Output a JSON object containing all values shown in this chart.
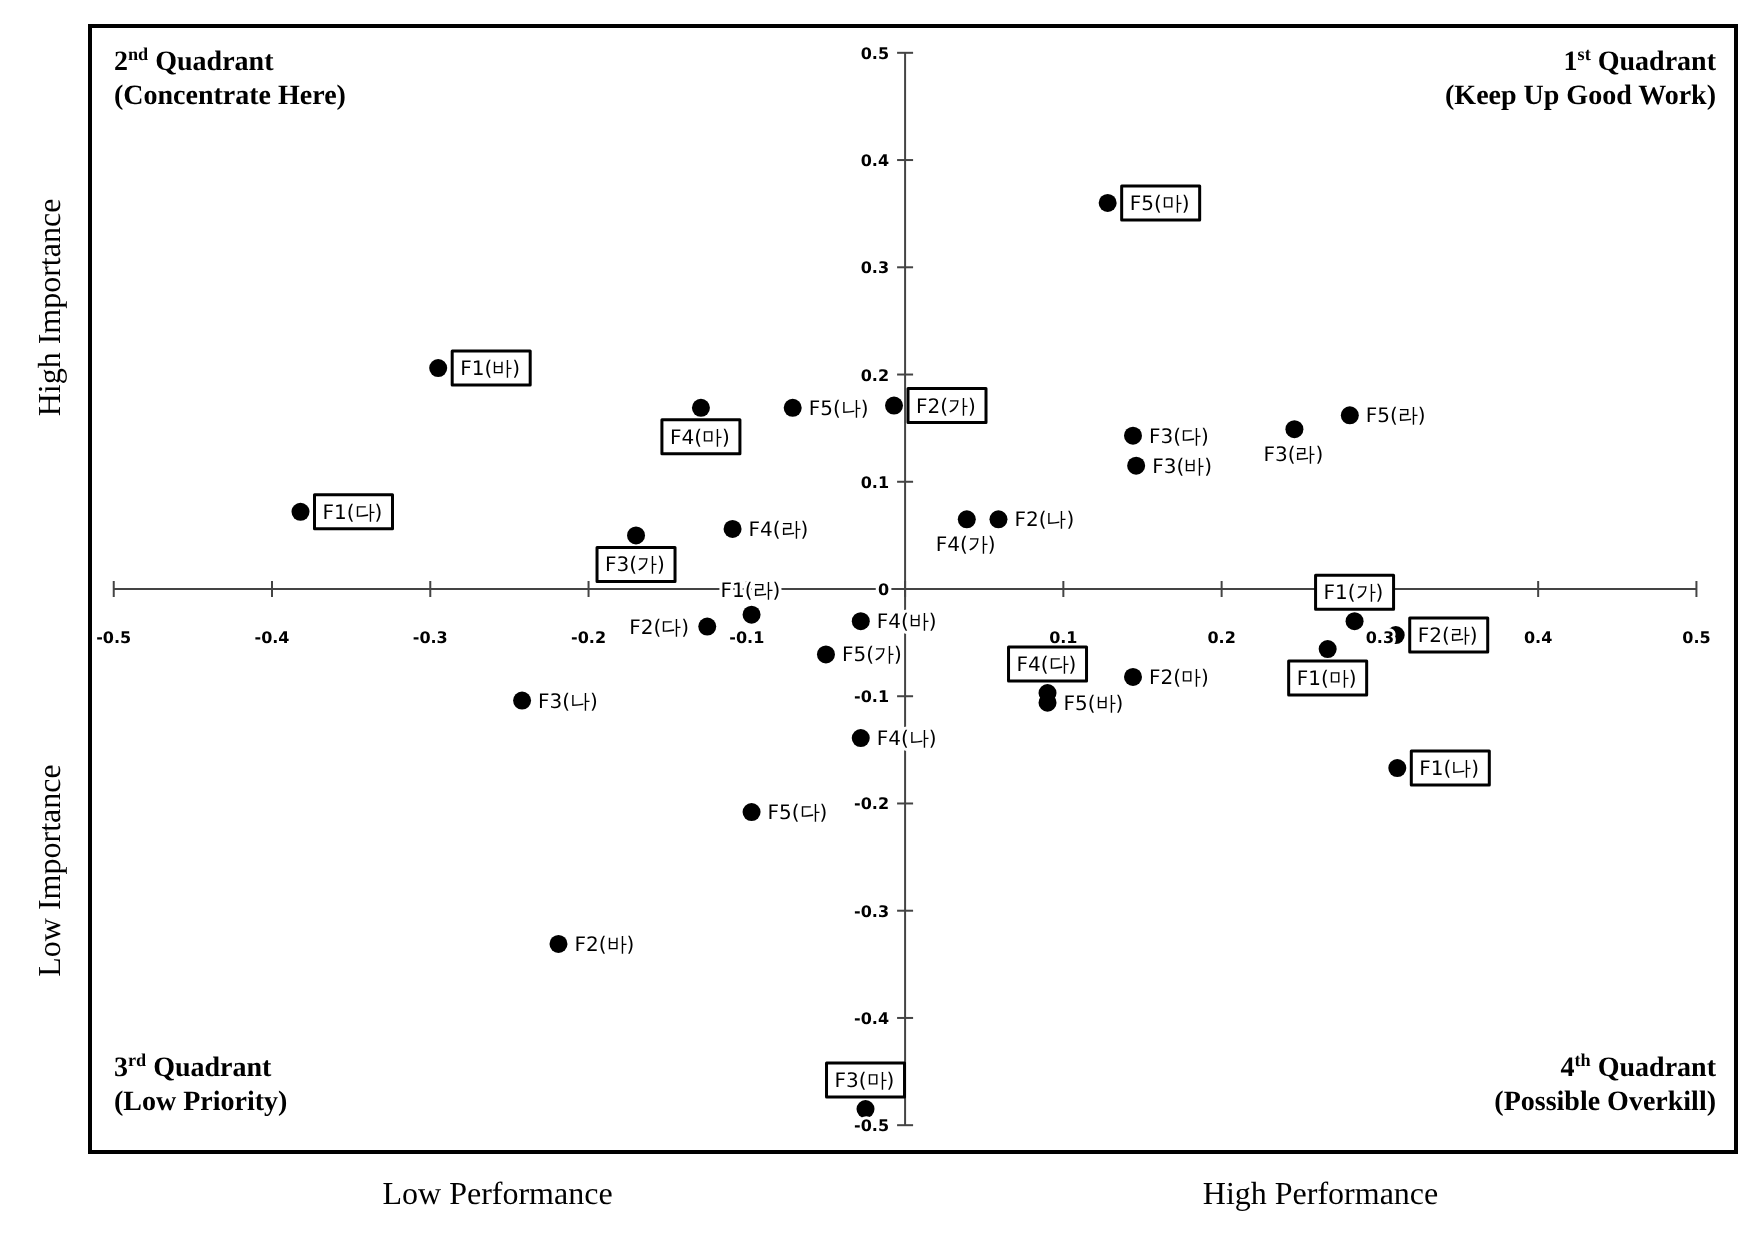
{
  "chart_data": {
    "type": "scatter",
    "xlim": [
      -0.515,
      0.525
    ],
    "ylim": [
      -0.525,
      0.525
    ],
    "xticks": [
      -0.5,
      -0.4,
      -0.3,
      -0.2,
      -0.1,
      {
        "value": 0,
        "label": null
      },
      0.1,
      0.2,
      0.3,
      0.4,
      0.5
    ],
    "yticks": [
      -0.5,
      -0.4,
      -0.3,
      -0.2,
      -0.1,
      0,
      0.1,
      0.2,
      0.3,
      0.4,
      0.5
    ],
    "grid": false,
    "marker": "circle",
    "series": [
      {
        "color": "#000000",
        "x": [
          0.128,
          -0.295,
          -0.382,
          -0.129,
          -0.007,
          -0.17,
          0.284,
          0.31,
          0.267,
          0.311,
          0.09,
          -0.025
        ],
        "values": [
          0.36,
          0.206,
          0.072,
          0.169,
          0.171,
          0.05,
          -0.03,
          -0.043,
          -0.056,
          -0.167,
          -0.097,
          -0.485
        ],
        "value_labels": [
          "F5(마)",
          "F1(바)",
          "F1(다)",
          "F4(마)",
          "F2(가)",
          "F3(가)",
          "F1(가)",
          "F2(라)",
          "F1(마)",
          "F1(나)",
          "F4(다)",
          "F3(마)"
        ]
      },
      {
        "color": "#000000",
        "x": [
          -0.071,
          -0.109,
          0.039,
          0.059,
          0.144,
          0.146,
          0.246,
          0.281,
          0.144,
          0.09,
          -0.097,
          -0.125,
          -0.028,
          -0.05,
          -0.028,
          -0.242,
          -0.097,
          -0.219
        ],
        "values": [
          0.169,
          0.056,
          0.065,
          0.065,
          0.143,
          0.115,
          0.149,
          0.162,
          -0.082,
          -0.106,
          -0.024,
          -0.035,
          -0.03,
          -0.061,
          -0.139,
          -0.104,
          -0.208,
          -0.331
        ],
        "value_labels": [
          "F5(나)",
          "F4(라)",
          "F4(가)",
          "F2(나)",
          "F3(다)",
          "F3(바)",
          "F3(라)",
          "F5(라)",
          "F2(마)",
          "F5(바)",
          "F1(라)",
          "F2(다)",
          "F4(바)",
          "F5(가)",
          "F4(나)",
          "F3(나)",
          "F5(다)",
          "F2(바)"
        ]
      }
    ],
    "annotations": [
      "2$^{nd}$ Quadrant",
      "(Concentrate Here)",
      "1$^{st}$ Quadrant",
      "(Keep Up Good Work)",
      "3$^{rd}$ Quadrant",
      "(Low Priority)",
      "4$^{th}$ Quadrant",
      "(Possible Overkill)",
      "Low Performance",
      "High Performance",
      "High Importance",
      "Low Importance"
    ]
  }
}
